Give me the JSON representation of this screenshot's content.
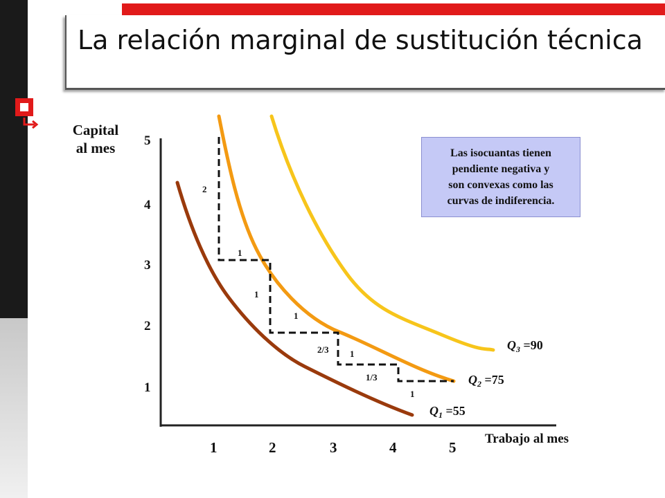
{
  "title": "La relación marginal de sustitución técnica",
  "y_axis_label": [
    "Capital",
    "al mes"
  ],
  "x_axis_label": "Trabajo al mes",
  "x_ticks": [
    "1",
    "2",
    "3",
    "4",
    "5"
  ],
  "y_ticks": [
    "1",
    "2",
    "3",
    "4",
    "5"
  ],
  "note": [
    "Las isocuantas tienen",
    "pendiente negativa y",
    "son convexas como las",
    "curvas de indiferencia."
  ],
  "isoquants": [
    {
      "symbol": "Q",
      "subscript": "1",
      "value": " =55",
      "color": "#9a3a0c"
    },
    {
      "symbol": "Q",
      "subscript": "2",
      "value": " =75",
      "color": "#f39a12"
    },
    {
      "symbol": "Q",
      "subscript": "3",
      "value": " =90",
      "color": "#f7c51b"
    }
  ],
  "steps": {
    "vertical_drops": [
      "2",
      "1",
      "2/3",
      "1/3"
    ],
    "horizontal_runs": [
      "1",
      "1",
      "1",
      "1"
    ]
  },
  "colors": {
    "accent": "#e11a1a",
    "note_bg": "#c5c9f6"
  }
}
